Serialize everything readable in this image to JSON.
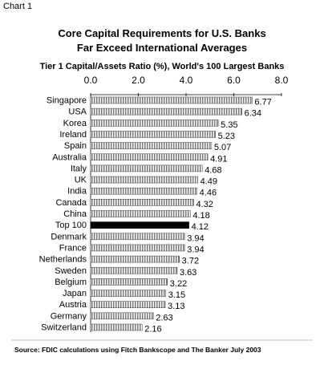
{
  "header": {
    "chart_label": "Chart 1",
    "source": "Source: FDIC calculations using Fitch Bankscope and The Banker July 2003"
  },
  "chart_data": {
    "type": "bar",
    "orientation": "horizontal",
    "title": "Core Capital Requirements for U.S. Banks",
    "title_line2": "Far Exceed International Averages",
    "subtitle": "Tier 1 Capital/Assets Ratio (%), World's 100 Largest Banks",
    "xlim": [
      0,
      8
    ],
    "xticks": [
      "0.0",
      "2.0",
      "4.0",
      "6.0",
      "8.0"
    ],
    "tick_values": [
      0,
      2,
      4,
      6,
      8
    ],
    "grid": false,
    "categories": [
      "Singapore",
      "USA",
      "Korea",
      "Ireland",
      "Spain",
      "Australia",
      "Italy",
      "UK",
      "India",
      "Canada",
      "China",
      "Top 100",
      "Denmark",
      "France",
      "Netherlands",
      "Sweden",
      "Belgium",
      "Japan",
      "Austria",
      "Germany",
      "Switzerland"
    ],
    "values": [
      6.77,
      6.34,
      5.35,
      5.23,
      5.07,
      4.91,
      4.68,
      4.49,
      4.46,
      4.32,
      4.18,
      4.12,
      3.94,
      3.94,
      3.72,
      3.63,
      3.22,
      3.15,
      3.13,
      2.63,
      2.16
    ],
    "value_labels": [
      "6.77",
      "6.34",
      "5.35",
      "5.23",
      "5.07",
      "4.91",
      "4.68",
      "4.49",
      "4.46",
      "4.32",
      "4.18",
      "4.12",
      "3.94",
      "3.94",
      "3.72",
      "3.63",
      "3.22",
      "3.15",
      "3.13",
      "2.63",
      "2.16"
    ],
    "highlight": "Top 100",
    "colors": {
      "bar": "#7a7a7a",
      "bar_highlight": "#000000",
      "bar_border": "#555555"
    }
  }
}
